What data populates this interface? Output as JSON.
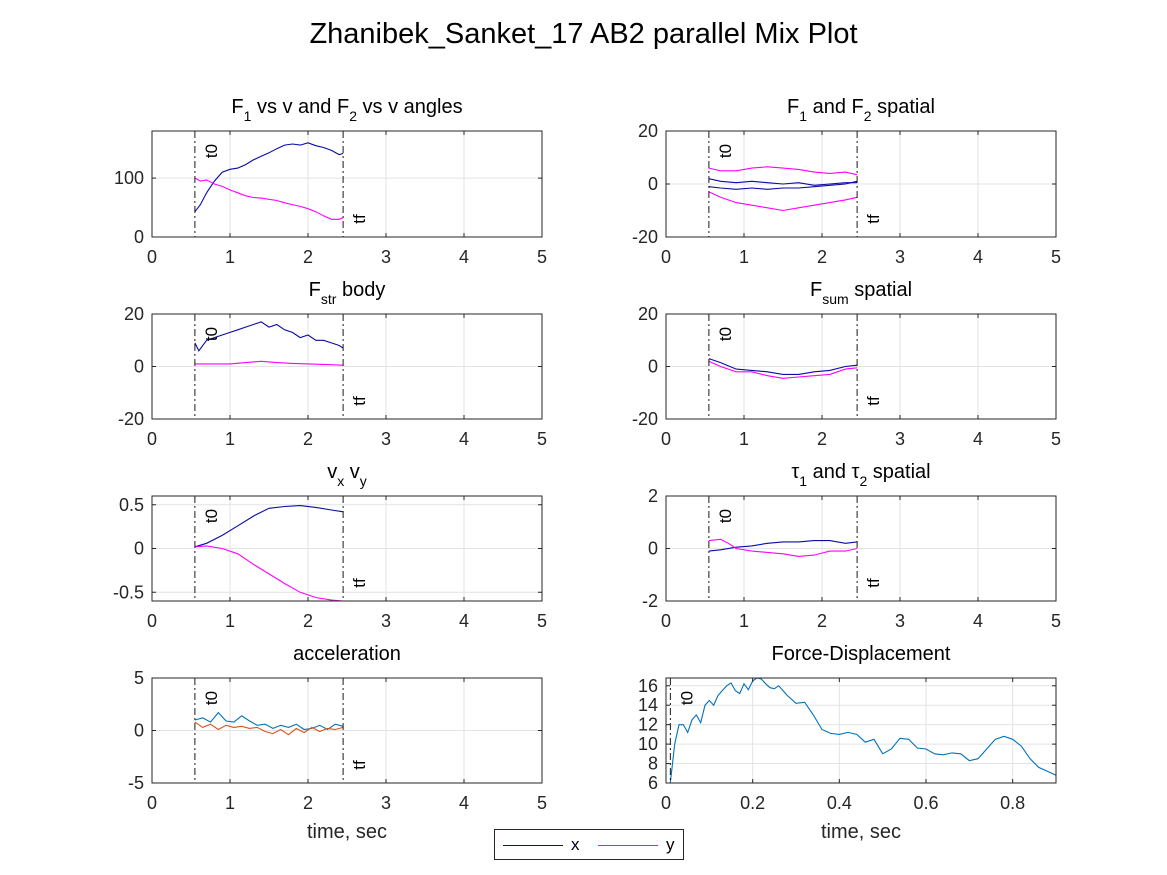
{
  "figure_title": "Zhanibek_Sanket_17 AB2 parallel Mix Plot",
  "colors": {
    "x": "#0a0aa8",
    "y": "#ff00ff",
    "accel_x": "#0072bd",
    "accel_y": "#d95319",
    "fd": "#0072bd"
  },
  "legend": [
    {
      "label": "x",
      "color": "#0a0aa8"
    },
    {
      "label": "y",
      "color": "#ff00ff"
    }
  ],
  "chart_data": [
    {
      "id": "p1",
      "type": "line",
      "title": "F<sub>1</sub> vs v and F<sub>2</sub> vs v angles",
      "xlim": [
        0,
        5
      ],
      "ylim": [
        0,
        180
      ],
      "xticks": [
        0,
        1,
        2,
        3,
        4,
        5
      ],
      "yticks": [
        0,
        100
      ],
      "xlabel": "",
      "grid": true,
      "markers": [
        {
          "label": "t0",
          "x": 0.55
        },
        {
          "label": "tf",
          "x": 2.45
        }
      ],
      "series": [
        {
          "key": "x",
          "color": "#0a0aa8",
          "x": [
            0.55,
            0.62,
            0.7,
            0.8,
            0.9,
            1.0,
            1.1,
            1.2,
            1.3,
            1.4,
            1.5,
            1.6,
            1.7,
            1.8,
            1.9,
            2.0,
            2.1,
            2.2,
            2.3,
            2.4,
            2.45
          ],
          "y": [
            43,
            55,
            75,
            95,
            110,
            115,
            117,
            123,
            131,
            137,
            143,
            150,
            156,
            158,
            156,
            160,
            155,
            152,
            147,
            140,
            142
          ]
        },
        {
          "key": "y",
          "color": "#ff00ff",
          "x": [
            0.55,
            0.62,
            0.7,
            0.8,
            0.9,
            1.0,
            1.1,
            1.2,
            1.3,
            1.4,
            1.5,
            1.6,
            1.7,
            1.8,
            1.9,
            2.0,
            2.1,
            2.2,
            2.3,
            2.4,
            2.45
          ],
          "y": [
            100,
            95,
            97,
            90,
            86,
            80,
            75,
            70,
            67,
            66,
            64,
            62,
            58,
            55,
            52,
            48,
            43,
            36,
            30,
            30,
            33
          ]
        }
      ]
    },
    {
      "id": "p2",
      "type": "line",
      "title": "F<sub>1</sub> and F<sub>2</sub> spatial",
      "xlim": [
        0,
        5
      ],
      "ylim": [
        -20,
        20
      ],
      "xticks": [
        0,
        1,
        2,
        3,
        4,
        5
      ],
      "yticks": [
        -20,
        0,
        20
      ],
      "xlabel": "",
      "grid": true,
      "markers": [
        {
          "label": "t0",
          "x": 0.55
        },
        {
          "label": "tf",
          "x": 2.45
        }
      ],
      "series": [
        {
          "key": "x",
          "color": "#0a0aa8",
          "x": [
            0.55,
            0.7,
            0.9,
            1.1,
            1.3,
            1.5,
            1.7,
            1.9,
            2.1,
            2.3,
            2.45
          ],
          "y": [
            2,
            1,
            0.5,
            1,
            0.5,
            0,
            0.5,
            -0.5,
            0,
            0.5,
            0.5
          ]
        },
        {
          "key": "x",
          "color": "#0a0aa8",
          "x": [
            0.55,
            0.7,
            0.9,
            1.1,
            1.3,
            1.5,
            1.7,
            1.9,
            2.1,
            2.3,
            2.45
          ],
          "y": [
            -1,
            -1.5,
            -2,
            -1.5,
            -2,
            -1.5,
            -1.5,
            -1,
            -0.5,
            0,
            1
          ]
        },
        {
          "key": "y",
          "color": "#ff00ff",
          "x": [
            0.55,
            0.7,
            0.9,
            1.1,
            1.3,
            1.5,
            1.7,
            1.9,
            2.1,
            2.3,
            2.45
          ],
          "y": [
            6,
            5,
            5,
            6,
            6.5,
            6,
            5.5,
            4.5,
            4,
            4.5,
            3.5
          ]
        },
        {
          "key": "y",
          "color": "#ff00ff",
          "x": [
            0.55,
            0.7,
            0.9,
            1.1,
            1.3,
            1.5,
            1.7,
            1.9,
            2.1,
            2.3,
            2.45
          ],
          "y": [
            -3,
            -5,
            -7,
            -8,
            -9,
            -10,
            -9,
            -8,
            -7,
            -6,
            -5
          ]
        }
      ]
    },
    {
      "id": "p3",
      "type": "line",
      "title": "F<sub>str</sub> body",
      "xlim": [
        0,
        5
      ],
      "ylim": [
        -20,
        20
      ],
      "xticks": [
        0,
        1,
        2,
        3,
        4,
        5
      ],
      "yticks": [
        -20,
        0,
        20
      ],
      "xlabel": "",
      "grid": true,
      "markers": [
        {
          "label": "t0",
          "x": 0.55
        },
        {
          "label": "tf",
          "x": 2.45
        }
      ],
      "series": [
        {
          "key": "x",
          "color": "#0a0aa8",
          "x": [
            0.55,
            0.6,
            0.7,
            0.8,
            0.9,
            1.0,
            1.1,
            1.2,
            1.3,
            1.4,
            1.5,
            1.6,
            1.7,
            1.8,
            1.9,
            2.0,
            2.1,
            2.2,
            2.3,
            2.4,
            2.45
          ],
          "y": [
            9,
            6,
            10,
            11,
            12,
            13,
            14,
            15,
            16,
            17,
            15,
            16,
            14,
            13,
            11,
            12,
            10,
            10,
            9,
            8,
            7
          ]
        },
        {
          "key": "y",
          "color": "#ff00ff",
          "x": [
            0.55,
            0.8,
            1.0,
            1.2,
            1.4,
            1.6,
            1.8,
            2.0,
            2.2,
            2.45
          ],
          "y": [
            1,
            1,
            1,
            1.5,
            2,
            1.5,
            1.2,
            1,
            0.8,
            0.5
          ]
        }
      ]
    },
    {
      "id": "p4",
      "type": "line",
      "title": "F<sub>sum</sub> spatial",
      "xlim": [
        0,
        5
      ],
      "ylim": [
        -20,
        20
      ],
      "xticks": [
        0,
        1,
        2,
        3,
        4,
        5
      ],
      "yticks": [
        -20,
        0,
        20
      ],
      "xlabel": "",
      "grid": true,
      "markers": [
        {
          "label": "t0",
          "x": 0.55
        },
        {
          "label": "tf",
          "x": 2.45
        }
      ],
      "series": [
        {
          "key": "x",
          "color": "#0a0aa8",
          "x": [
            0.55,
            0.7,
            0.9,
            1.1,
            1.3,
            1.5,
            1.7,
            1.9,
            2.1,
            2.3,
            2.45
          ],
          "y": [
            3,
            1.5,
            -1,
            -1.5,
            -2,
            -3,
            -3,
            -2,
            -1.5,
            0,
            0.5
          ]
        },
        {
          "key": "y",
          "color": "#ff00ff",
          "x": [
            0.55,
            0.7,
            0.9,
            1.1,
            1.3,
            1.5,
            1.7,
            1.9,
            2.1,
            2.3,
            2.45
          ],
          "y": [
            2,
            0,
            -2,
            -2,
            -3.5,
            -4.5,
            -4,
            -3.5,
            -3,
            -1,
            -0.5
          ]
        }
      ]
    },
    {
      "id": "p5",
      "type": "line",
      "title": "v<sub>x</sub> v<sub>y</sub>",
      "xlim": [
        0,
        5
      ],
      "ylim": [
        -0.6,
        0.6
      ],
      "xticks": [
        0,
        1,
        2,
        3,
        4,
        5
      ],
      "yticks": [
        -0.5,
        0,
        0.5
      ],
      "xlabel": "",
      "grid": true,
      "markers": [
        {
          "label": "t0",
          "x": 0.55
        },
        {
          "label": "tf",
          "x": 2.45
        }
      ],
      "series": [
        {
          "key": "x",
          "color": "#0a0aa8",
          "x": [
            0.55,
            0.7,
            0.9,
            1.1,
            1.3,
            1.5,
            1.7,
            1.9,
            2.1,
            2.3,
            2.45
          ],
          "y": [
            0.02,
            0.06,
            0.15,
            0.26,
            0.37,
            0.46,
            0.48,
            0.49,
            0.47,
            0.44,
            0.42
          ]
        },
        {
          "key": "y",
          "color": "#ff00ff",
          "x": [
            0.55,
            0.7,
            0.9,
            1.1,
            1.3,
            1.5,
            1.7,
            1.9,
            2.1,
            2.3,
            2.45
          ],
          "y": [
            0.02,
            0.03,
            0.0,
            -0.06,
            -0.18,
            -0.29,
            -0.4,
            -0.5,
            -0.56,
            -0.59,
            -0.6
          ]
        }
      ]
    },
    {
      "id": "p6",
      "type": "line",
      "title": "τ<sub>1</sub> and τ<sub>2</sub> spatial",
      "xlim": [
        0,
        5
      ],
      "ylim": [
        -2,
        2
      ],
      "xticks": [
        0,
        1,
        2,
        3,
        4,
        5
      ],
      "yticks": [
        -2,
        0,
        2
      ],
      "xlabel": "",
      "grid": true,
      "markers": [
        {
          "label": "t0",
          "x": 0.55
        },
        {
          "label": "tf",
          "x": 2.45
        }
      ],
      "series": [
        {
          "key": "x",
          "color": "#0a0aa8",
          "x": [
            0.55,
            0.7,
            0.9,
            1.1,
            1.3,
            1.5,
            1.7,
            1.9,
            2.1,
            2.3,
            2.45
          ],
          "y": [
            -0.1,
            -0.05,
            0.05,
            0.1,
            0.2,
            0.25,
            0.25,
            0.3,
            0.3,
            0.2,
            0.25
          ]
        },
        {
          "key": "y",
          "color": "#ff00ff",
          "x": [
            0.55,
            0.7,
            0.8,
            0.9,
            1.1,
            1.3,
            1.5,
            1.7,
            1.9,
            2.1,
            2.3,
            2.45
          ],
          "y": [
            0.3,
            0.35,
            0.2,
            0.0,
            -0.1,
            -0.15,
            -0.2,
            -0.3,
            -0.25,
            -0.1,
            -0.1,
            0.0
          ]
        }
      ]
    },
    {
      "id": "p7",
      "type": "line",
      "title": "acceleration",
      "xlim": [
        0,
        5
      ],
      "ylim": [
        -5,
        5
      ],
      "xticks": [
        0,
        1,
        2,
        3,
        4,
        5
      ],
      "yticks": [
        -5,
        0,
        5
      ],
      "xlabel": "time, sec",
      "grid": true,
      "markers": [
        {
          "label": "t0",
          "x": 0.55
        },
        {
          "label": "tf",
          "x": 2.45
        }
      ],
      "series": [
        {
          "key": "accel_x",
          "color": "#0072bd",
          "x": [
            0.55,
            0.65,
            0.75,
            0.85,
            0.95,
            1.05,
            1.15,
            1.25,
            1.35,
            1.45,
            1.55,
            1.65,
            1.75,
            1.85,
            1.95,
            2.05,
            2.15,
            2.25,
            2.35,
            2.45
          ],
          "y": [
            1,
            1.2,
            0.8,
            1.7,
            0.9,
            0.8,
            1.4,
            0.9,
            0.5,
            0.6,
            0.2,
            0.5,
            0.3,
            0.6,
            0.1,
            0.2,
            0.5,
            0.1,
            0.6,
            0.4
          ]
        },
        {
          "key": "accel_y",
          "color": "#d95319",
          "x": [
            0.55,
            0.65,
            0.75,
            0.85,
            0.95,
            1.05,
            1.15,
            1.25,
            1.35,
            1.45,
            1.55,
            1.65,
            1.75,
            1.85,
            1.95,
            2.05,
            2.15,
            2.25,
            2.35,
            2.45
          ],
          "y": [
            0.8,
            0.3,
            0.6,
            0.1,
            0.5,
            0.3,
            0.4,
            0.2,
            0.3,
            -0.1,
            -0.3,
            0.1,
            -0.4,
            0.2,
            -0.2,
            0.3,
            -0.1,
            0.2,
            0.1,
            0.3
          ]
        }
      ]
    },
    {
      "id": "p8",
      "type": "line",
      "title": "Force-Displacement",
      "xlim": [
        0,
        0.9
      ],
      "ylim": [
        6,
        16.8
      ],
      "xticks": [
        0,
        0.2,
        0.4,
        0.6,
        0.8
      ],
      "yticks": [
        6,
        8,
        10,
        12,
        14,
        16
      ],
      "xlabel": "time, sec",
      "grid": true,
      "markers": [
        {
          "label": "t0",
          "x": 0.01
        }
      ],
      "series": [
        {
          "key": "fd",
          "color": "#0072bd",
          "x": [
            0.01,
            0.02,
            0.03,
            0.04,
            0.05,
            0.06,
            0.07,
            0.08,
            0.09,
            0.1,
            0.11,
            0.12,
            0.13,
            0.14,
            0.15,
            0.16,
            0.17,
            0.18,
            0.19,
            0.2,
            0.21,
            0.22,
            0.23,
            0.24,
            0.25,
            0.26,
            0.27,
            0.28,
            0.3,
            0.32,
            0.34,
            0.36,
            0.38,
            0.4,
            0.42,
            0.44,
            0.46,
            0.48,
            0.5,
            0.52,
            0.54,
            0.56,
            0.58,
            0.6,
            0.62,
            0.64,
            0.66,
            0.68,
            0.7,
            0.72,
            0.74,
            0.76,
            0.78,
            0.8,
            0.82,
            0.84,
            0.86,
            0.88,
            0.9
          ],
          "y": [
            6,
            10,
            12,
            12,
            11.2,
            12.5,
            13,
            12.2,
            14,
            14.5,
            14,
            15,
            15.5,
            16,
            16.3,
            15.5,
            15.2,
            16.2,
            15.6,
            16.5,
            16.8,
            16.7,
            16.2,
            15.8,
            15.7,
            16,
            15.5,
            15,
            14.2,
            14.3,
            13,
            11.5,
            11.1,
            11,
            11.2,
            11,
            10.2,
            10.5,
            9,
            9.5,
            10.6,
            10.5,
            9.6,
            9.5,
            9,
            8.9,
            9.1,
            9,
            8.3,
            8.5,
            9.5,
            10.5,
            10.8,
            10.5,
            9.8,
            8.5,
            7.6,
            7.2,
            6.8
          ]
        }
      ]
    }
  ]
}
